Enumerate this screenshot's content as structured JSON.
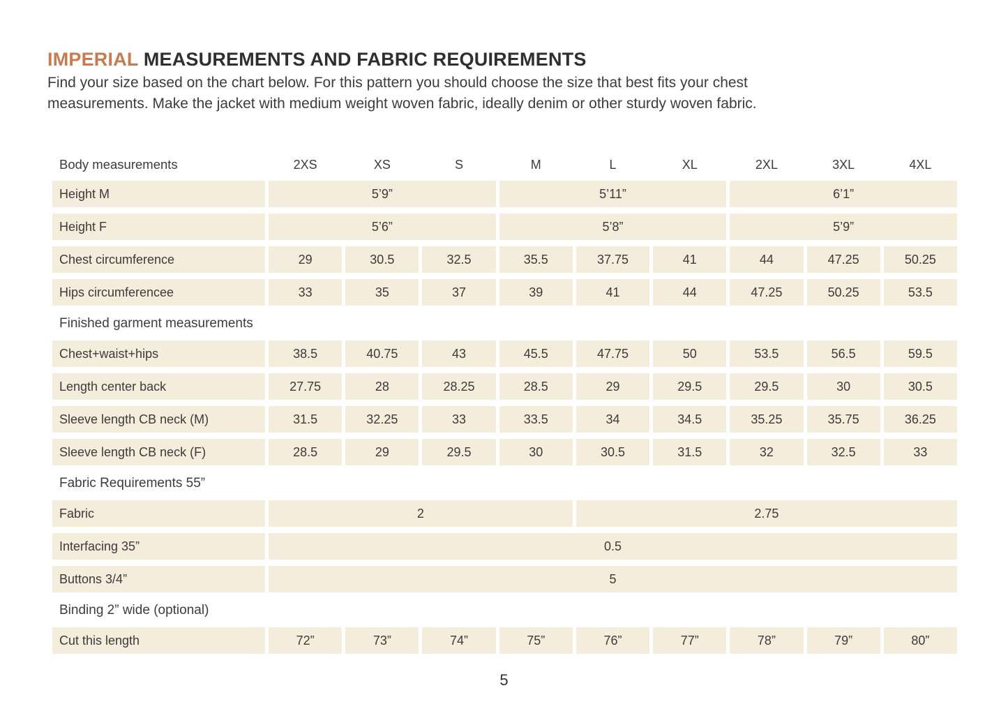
{
  "page": {
    "title": {
      "highlight": "IMPERIAL",
      "rest": " MEASUREMENTS AND FABRIC REQUIREMENTS"
    },
    "intro_lines": [
      "Find your size based on the chart below. For this pattern you should choose the size that best fits your chest",
      "measurements. Make the jacket with medium weight woven fabric, ideally denim or other sturdy woven fabric."
    ],
    "page_number": "5"
  },
  "colors": {
    "accent": "#C77B50",
    "cell_fill": "#F5EDDC",
    "heading_text": "#2F2F2F",
    "body_text": "#3C3C3C"
  },
  "table": {
    "header_label": "Body measurements",
    "size_columns": [
      "2XS",
      "XS",
      "S",
      "M",
      "L",
      "XL",
      "2XL",
      "3XL",
      "4XL"
    ],
    "rows": [
      {
        "type": "data",
        "label": "Height M",
        "cells": [
          {
            "span": 3,
            "value": "5’9”"
          },
          {
            "span": 3,
            "value": "5’11”"
          },
          {
            "span": 3,
            "value": "6’1”"
          }
        ]
      },
      {
        "type": "data",
        "label": "Height F",
        "cells": [
          {
            "span": 3,
            "value": "5’6”"
          },
          {
            "span": 3,
            "value": "5’8”"
          },
          {
            "span": 3,
            "value": "5’9”"
          }
        ]
      },
      {
        "type": "data",
        "label": "Chest circumference",
        "cells": [
          {
            "span": 1,
            "value": "29"
          },
          {
            "span": 1,
            "value": "30.5"
          },
          {
            "span": 1,
            "value": "32.5"
          },
          {
            "span": 1,
            "value": "35.5"
          },
          {
            "span": 1,
            "value": "37.75"
          },
          {
            "span": 1,
            "value": "41"
          },
          {
            "span": 1,
            "value": "44"
          },
          {
            "span": 1,
            "value": "47.25"
          },
          {
            "span": 1,
            "value": "50.25"
          }
        ]
      },
      {
        "type": "data",
        "label": "Hips circumferencee",
        "cells": [
          {
            "span": 1,
            "value": "33"
          },
          {
            "span": 1,
            "value": "35"
          },
          {
            "span": 1,
            "value": "37"
          },
          {
            "span": 1,
            "value": "39"
          },
          {
            "span": 1,
            "value": "41"
          },
          {
            "span": 1,
            "value": "44"
          },
          {
            "span": 1,
            "value": "47.25"
          },
          {
            "span": 1,
            "value": "50.25"
          },
          {
            "span": 1,
            "value": "53.5"
          }
        ]
      },
      {
        "type": "section",
        "label": "Finished garment measurements"
      },
      {
        "type": "data",
        "label": "Chest+waist+hips",
        "cells": [
          {
            "span": 1,
            "value": "38.5"
          },
          {
            "span": 1,
            "value": "40.75"
          },
          {
            "span": 1,
            "value": "43"
          },
          {
            "span": 1,
            "value": "45.5"
          },
          {
            "span": 1,
            "value": "47.75"
          },
          {
            "span": 1,
            "value": "50"
          },
          {
            "span": 1,
            "value": "53.5"
          },
          {
            "span": 1,
            "value": "56.5"
          },
          {
            "span": 1,
            "value": "59.5"
          }
        ]
      },
      {
        "type": "data",
        "label": "Length center back",
        "cells": [
          {
            "span": 1,
            "value": "27.75"
          },
          {
            "span": 1,
            "value": "28"
          },
          {
            "span": 1,
            "value": "28.25"
          },
          {
            "span": 1,
            "value": "28.5"
          },
          {
            "span": 1,
            "value": "29"
          },
          {
            "span": 1,
            "value": "29.5"
          },
          {
            "span": 1,
            "value": "29.5"
          },
          {
            "span": 1,
            "value": "30"
          },
          {
            "span": 1,
            "value": "30.5"
          }
        ]
      },
      {
        "type": "data",
        "label": "Sleeve length CB neck (M)",
        "cells": [
          {
            "span": 1,
            "value": "31.5"
          },
          {
            "span": 1,
            "value": "32.25"
          },
          {
            "span": 1,
            "value": "33"
          },
          {
            "span": 1,
            "value": "33.5"
          },
          {
            "span": 1,
            "value": "34"
          },
          {
            "span": 1,
            "value": "34.5"
          },
          {
            "span": 1,
            "value": "35.25"
          },
          {
            "span": 1,
            "value": "35.75"
          },
          {
            "span": 1,
            "value": "36.25"
          }
        ]
      },
      {
        "type": "data",
        "label": "Sleeve length CB neck (F)",
        "cells": [
          {
            "span": 1,
            "value": "28.5"
          },
          {
            "span": 1,
            "value": "29"
          },
          {
            "span": 1,
            "value": "29.5"
          },
          {
            "span": 1,
            "value": "30"
          },
          {
            "span": 1,
            "value": "30.5"
          },
          {
            "span": 1,
            "value": "31.5"
          },
          {
            "span": 1,
            "value": "32"
          },
          {
            "span": 1,
            "value": "32.5"
          },
          {
            "span": 1,
            "value": "33"
          }
        ]
      },
      {
        "type": "section",
        "label": "Fabric Requirements 55”"
      },
      {
        "type": "data",
        "label": "Fabric",
        "cells": [
          {
            "span": 4,
            "value": "2"
          },
          {
            "span": 5,
            "value": "2.75"
          }
        ]
      },
      {
        "type": "data",
        "label": "Interfacing 35”",
        "cells": [
          {
            "span": 9,
            "value": "0.5"
          }
        ]
      },
      {
        "type": "data",
        "label": "Buttons 3/4”",
        "cells": [
          {
            "span": 9,
            "value": "5"
          }
        ]
      },
      {
        "type": "section",
        "label": "Binding 2” wide (optional)"
      },
      {
        "type": "data",
        "label": "Cut this length",
        "cells": [
          {
            "span": 1,
            "value": "72”"
          },
          {
            "span": 1,
            "value": "73”"
          },
          {
            "span": 1,
            "value": "74”"
          },
          {
            "span": 1,
            "value": "75”"
          },
          {
            "span": 1,
            "value": "76”"
          },
          {
            "span": 1,
            "value": "77”"
          },
          {
            "span": 1,
            "value": "78”"
          },
          {
            "span": 1,
            "value": "79”"
          },
          {
            "span": 1,
            "value": "80”"
          }
        ]
      }
    ]
  }
}
